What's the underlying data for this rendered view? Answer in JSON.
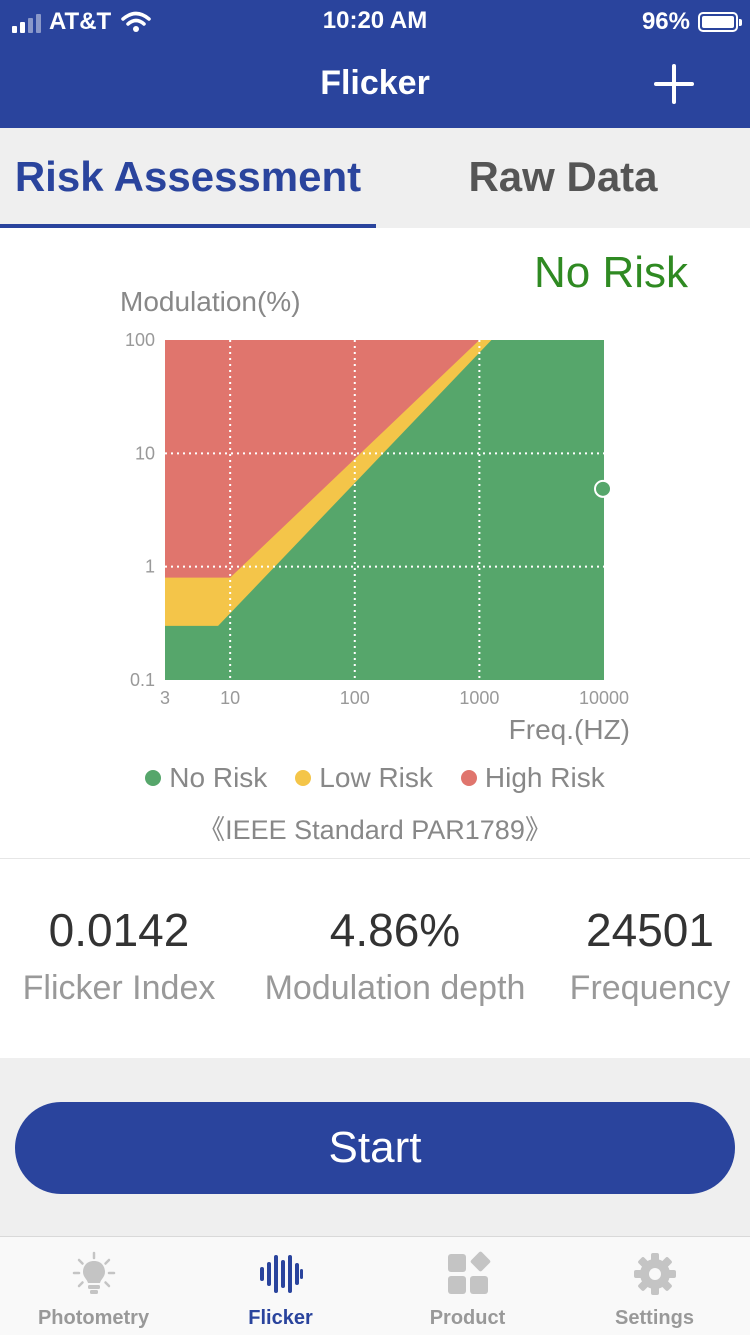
{
  "status_bar": {
    "carrier": "AT&T",
    "time": "10:20 AM",
    "battery": "96%"
  },
  "nav": {
    "title": "Flicker",
    "add_icon": "plus-icon"
  },
  "tabs": [
    {
      "label": "Risk Assessment",
      "active": true
    },
    {
      "label": "Raw Data",
      "active": false
    }
  ],
  "risk_status": "No Risk",
  "chart_data": {
    "type": "area",
    "xlabel": "Freq.(HZ)",
    "ylabel": "Modulation(%)",
    "x_scale": "log",
    "y_scale": "log",
    "xlim": [
      3,
      10000
    ],
    "ylim": [
      0.1,
      100
    ],
    "x_ticks": [
      "3",
      "10",
      "100",
      "1000",
      "10000"
    ],
    "y_ticks": [
      "100",
      "10",
      "1",
      "0.1"
    ],
    "grid": true,
    "series": [
      {
        "name": "No Risk",
        "color": "#56a66b",
        "boundary": [
          [
            3,
            0.3
          ],
          [
            8,
            0.3
          ],
          [
            1250,
            100
          ]
        ]
      },
      {
        "name": "Low Risk",
        "color": "#f4c549",
        "boundary": [
          [
            3,
            0.8
          ],
          [
            10,
            0.8
          ],
          [
            1000,
            100
          ]
        ]
      },
      {
        "name": "High Risk",
        "color": "#e0756d"
      }
    ],
    "point": {
      "x": 10000,
      "y": 4.86
    }
  },
  "legend": [
    {
      "label": "No Risk",
      "color": "#56a66b"
    },
    {
      "label": "Low Risk",
      "color": "#f4c549"
    },
    {
      "label": "High Risk",
      "color": "#e0756d"
    }
  ],
  "standard": "《IEEE Standard PAR1789》",
  "metrics": [
    {
      "value": "0.0142",
      "label": "Flicker Index"
    },
    {
      "value": "4.86%",
      "label": "Modulation depth"
    },
    {
      "value": "24501",
      "label": "Frequency"
    }
  ],
  "start_label": "Start",
  "bottom_tabs": [
    {
      "label": "Photometry",
      "icon": "lightbulb-icon",
      "active": false
    },
    {
      "label": "Flicker",
      "icon": "waveform-icon",
      "active": true
    },
    {
      "label": "Product",
      "icon": "grid-icon",
      "active": false
    },
    {
      "label": "Settings",
      "icon": "gear-icon",
      "active": false
    }
  ]
}
